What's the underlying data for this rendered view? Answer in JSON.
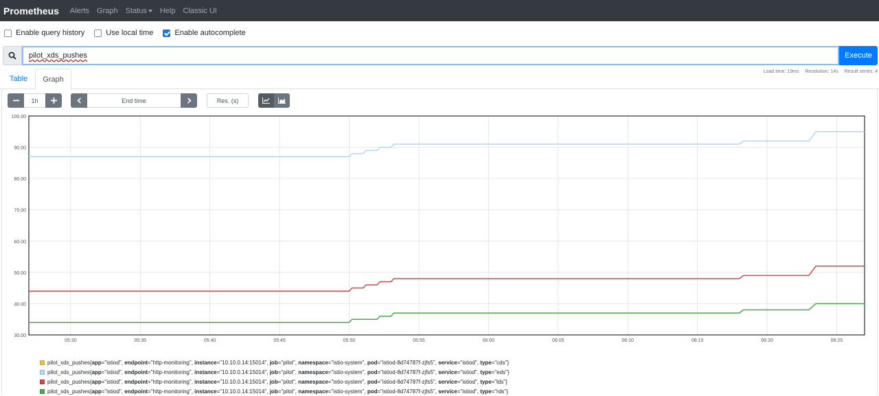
{
  "navbar": {
    "brand": "Prometheus",
    "items": [
      "Alerts",
      "Graph",
      "Status",
      "Help",
      "Classic UI"
    ]
  },
  "options": [
    {
      "label": "Enable query history",
      "checked": false
    },
    {
      "label": "Use local time",
      "checked": false
    },
    {
      "label": "Enable autocomplete",
      "checked": true
    }
  ],
  "query": {
    "value": "pilot_xds_pushes",
    "execute_label": "Execute"
  },
  "stats": {
    "load_time": "Load time: 19ms",
    "resolution": "Resolution: 14s",
    "result_series": "Result series: 4"
  },
  "tabs": [
    "Table",
    "Graph"
  ],
  "controls": {
    "range": "1h",
    "end_time_placeholder": "End time",
    "res_placeholder": "Res. (s)"
  },
  "colors": {
    "navbar": "#343a40",
    "accent": "#007bff",
    "series_cds": "#edc240",
    "series_eds": "#afd8f8",
    "series_lds": "#cb4b4b",
    "series_rds": "#4da74d"
  },
  "chart_data": {
    "type": "line",
    "ylim": [
      30,
      100
    ],
    "yticks": [
      "30.00",
      "40.00",
      "50.00",
      "60.00",
      "70.00",
      "80.00",
      "90.00",
      "100.00"
    ],
    "xticks": [
      "05:30",
      "05:35",
      "05:40",
      "05:45",
      "05:50",
      "05:55",
      "06:00",
      "06:05",
      "06:10",
      "06:15",
      "06:20",
      "06:25"
    ],
    "x_unit": "minutes",
    "xlim": [
      "05:27",
      "06:27"
    ],
    "grid": true,
    "series": [
      {
        "name": "pilot_xds_pushes{app=\"istiod\", endpoint=\"http-monitoring\", instance=\"10.10.0.14:15014\", job=\"pilot\", namespace=\"istio-system\", pod=\"istiod-8d74787f-zjfs5\", service=\"istiod\", type=\"eds\"}",
        "color": "#afd8f8",
        "points": [
          [
            "05:27",
            87
          ],
          [
            "05:50",
            87
          ],
          [
            "05:50.2",
            88
          ],
          [
            "05:51",
            88
          ],
          [
            "05:51.2",
            89
          ],
          [
            "05:52",
            89
          ],
          [
            "05:52.2",
            90
          ],
          [
            "05:53",
            90
          ],
          [
            "05:53.2",
            91
          ],
          [
            "06:18",
            91
          ],
          [
            "06:18.3",
            92
          ],
          [
            "06:23",
            92
          ],
          [
            "06:23.5",
            95
          ],
          [
            "06:27",
            95
          ]
        ]
      },
      {
        "name": "pilot_xds_pushes{app=\"istiod\", endpoint=\"http-monitoring\", instance=\"10.10.0.14:15014\", job=\"pilot\", namespace=\"istio-system\", pod=\"istiod-8d74787f-zjfs5\", service=\"istiod\", type=\"lds\"}",
        "color": "#cb4b4b",
        "points": [
          [
            "05:27",
            44
          ],
          [
            "05:50",
            44
          ],
          [
            "05:50.2",
            45
          ],
          [
            "05:51",
            45
          ],
          [
            "05:51.2",
            46
          ],
          [
            "05:52",
            46
          ],
          [
            "05:52.2",
            47
          ],
          [
            "05:53",
            47
          ],
          [
            "05:53.2",
            48
          ],
          [
            "06:18",
            48
          ],
          [
            "06:18.3",
            49
          ],
          [
            "06:23",
            49
          ],
          [
            "06:23.5",
            52
          ],
          [
            "06:27",
            52
          ]
        ]
      },
      {
        "name": "pilot_xds_pushes{app=\"istiod\", endpoint=\"http-monitoring\", instance=\"10.10.0.14:15014\", job=\"pilot\", namespace=\"istio-system\", pod=\"istiod-8d74787f-zjfs5\", service=\"istiod\", type=\"rds\"}",
        "color": "#4da74d",
        "points": [
          [
            "05:27",
            34
          ],
          [
            "05:50",
            34
          ],
          [
            "05:50.2",
            35
          ],
          [
            "05:52",
            35
          ],
          [
            "05:52.2",
            36
          ],
          [
            "05:53",
            36
          ],
          [
            "05:53.2",
            37
          ],
          [
            "06:18",
            37
          ],
          [
            "06:18.3",
            38
          ],
          [
            "06:23",
            38
          ],
          [
            "06:23.5",
            40
          ],
          [
            "06:27",
            40
          ]
        ]
      }
    ]
  },
  "legend": [
    {
      "metric": "pilot_xds_pushes",
      "labels": [
        [
          "app",
          "istiod"
        ],
        [
          "endpoint",
          "http-monitoring"
        ],
        [
          "instance",
          "10.10.0.14:15014"
        ],
        [
          "job",
          "pilot"
        ],
        [
          "namespace",
          "istio-system"
        ],
        [
          "pod",
          "istiod-8d74787f-zjfs5"
        ],
        [
          "service",
          "istiod"
        ],
        [
          "type",
          "cds"
        ]
      ],
      "color": "#edc240"
    },
    {
      "metric": "pilot_xds_pushes",
      "labels": [
        [
          "app",
          "istiod"
        ],
        [
          "endpoint",
          "http-monitoring"
        ],
        [
          "instance",
          "10.10.0.14:15014"
        ],
        [
          "job",
          "pilot"
        ],
        [
          "namespace",
          "istio-system"
        ],
        [
          "pod",
          "istiod-8d74787f-zjfs5"
        ],
        [
          "service",
          "istiod"
        ],
        [
          "type",
          "eds"
        ]
      ],
      "color": "#afd8f8"
    },
    {
      "metric": "pilot_xds_pushes",
      "labels": [
        [
          "app",
          "istiod"
        ],
        [
          "endpoint",
          "http-monitoring"
        ],
        [
          "instance",
          "10.10.0.14:15014"
        ],
        [
          "job",
          "pilot"
        ],
        [
          "namespace",
          "istio-system"
        ],
        [
          "pod",
          "istiod-8d74787f-zjfs5"
        ],
        [
          "service",
          "istiod"
        ],
        [
          "type",
          "lds"
        ]
      ],
      "color": "#cb4b4b"
    },
    {
      "metric": "pilot_xds_pushes",
      "labels": [
        [
          "app",
          "istiod"
        ],
        [
          "endpoint",
          "http-monitoring"
        ],
        [
          "instance",
          "10.10.0.14:15014"
        ],
        [
          "job",
          "pilot"
        ],
        [
          "namespace",
          "istio-system"
        ],
        [
          "pod",
          "istiod-8d74787f-zjfs5"
        ],
        [
          "service",
          "istiod"
        ],
        [
          "type",
          "rds"
        ]
      ],
      "color": "#4da74d"
    }
  ]
}
